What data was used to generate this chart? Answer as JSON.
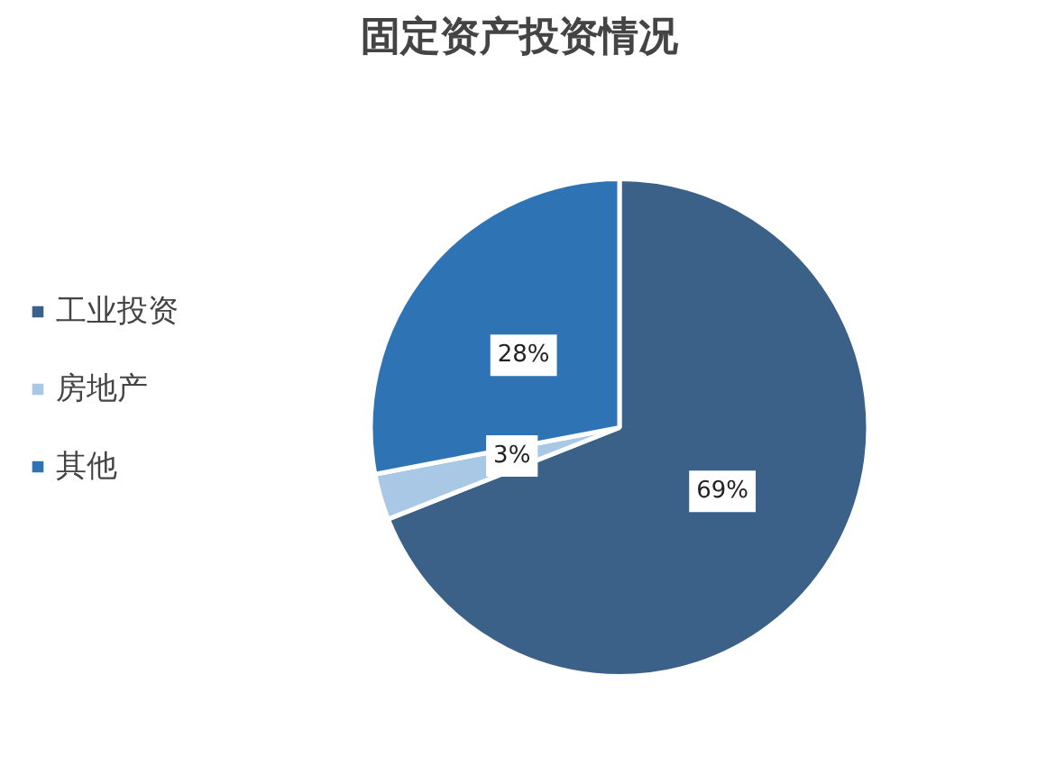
{
  "chart_data": {
    "type": "pie",
    "title": "固定资产投资情况",
    "categories": [
      "工业投资",
      "房地产",
      "其他"
    ],
    "values": [
      69,
      3,
      28
    ],
    "colors": [
      "#3b6188",
      "#a8c8e6",
      "#2e74b5"
    ],
    "value_labels": [
      "69%",
      "3%",
      "28%"
    ],
    "legend": "left"
  }
}
